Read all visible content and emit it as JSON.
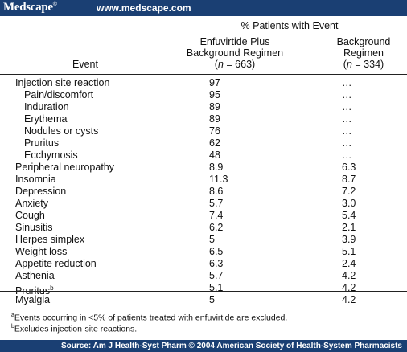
{
  "header": {
    "logo": "Medscape",
    "logo_mark": "®",
    "url": "www.medscape.com"
  },
  "table": {
    "group_header": "% Patients with Event",
    "col_event": "Event",
    "col1_line1": "Enfuvirtide Plus",
    "col1_line2": "Background Regimen",
    "col1_n_open": "(",
    "col1_n_label": "n",
    "col1_n_value": " = 663)",
    "col2_line1": "Background",
    "col2_line2": "Regimen",
    "col2_n_open": "(",
    "col2_n_label": "n",
    "col2_n_value": " = 334)",
    "rows": [
      {
        "label": "Injection site reaction",
        "v1": "97",
        "v2": "…"
      },
      {
        "label": "Pain/discomfort",
        "v1": "95",
        "v2": "…"
      },
      {
        "label": "Induration",
        "v1": "89",
        "v2": "…"
      },
      {
        "label": "Erythema",
        "v1": "89",
        "v2": "…"
      },
      {
        "label": "Nodules or cysts",
        "v1": "76",
        "v2": "…"
      },
      {
        "label": "Pruritus",
        "v1": "62",
        "v2": "…"
      },
      {
        "label": "Ecchymosis",
        "v1": "48",
        "v2": "…"
      },
      {
        "label": "Peripheral neuropathy",
        "v1": "8.9",
        "v2": "6.3"
      },
      {
        "label": "Insomnia",
        "v1": "11.3",
        "v2": "8.7"
      },
      {
        "label": "Depression",
        "v1": "8.6",
        "v2": "7.2"
      },
      {
        "label": "Anxiety",
        "v1": "5.7",
        "v2": "3.0"
      },
      {
        "label": "Cough",
        "v1": "7.4",
        "v2": "5.4"
      },
      {
        "label": "Sinusitis",
        "v1": "6.2",
        "v2": "2.1"
      },
      {
        "label": "Herpes simplex",
        "v1": "5",
        "v2": "3.9"
      },
      {
        "label": "Weight loss",
        "v1": "6.5",
        "v2": "5.1"
      },
      {
        "label": "Appetite reduction",
        "v1": "6.3",
        "v2": "2.4"
      },
      {
        "label": "Asthenia",
        "v1": "5.7",
        "v2": "4.2"
      },
      {
        "label": "Pruritus",
        "sup": "b",
        "v1": "5.1",
        "v2": "4.2"
      },
      {
        "label": "Myalgia",
        "v1": "5",
        "v2": "4.2"
      }
    ]
  },
  "footnotes": {
    "a_mark": "a",
    "a_text": "Events occurring in <5% of patients treated with enfuvirtide are excluded.",
    "b_mark": "b",
    "b_text": "Excludes injection-site reactions."
  },
  "footer": {
    "source": "Source: Am J Health-Syst Pharm © 2004 American Society of Health-System Pharmacists"
  },
  "colors": {
    "bar": "#1a3f73"
  }
}
